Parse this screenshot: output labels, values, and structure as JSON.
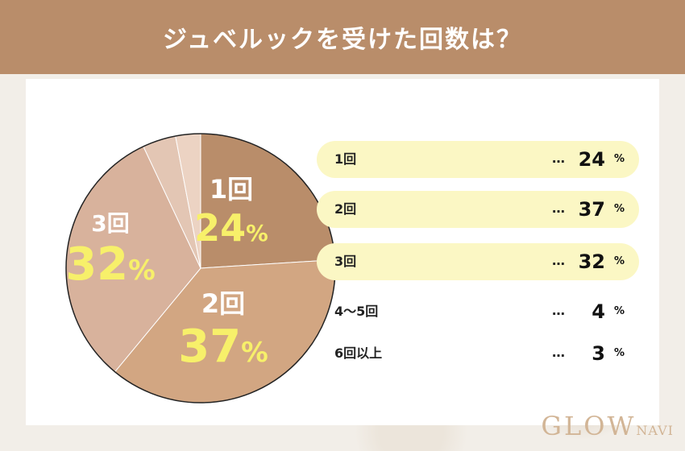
{
  "header": {
    "title": "ジュベルックを受けた回数は？"
  },
  "chart_data": {
    "type": "pie",
    "title": "ジュベルックを受けた回数は？",
    "unit": "%",
    "slices": [
      {
        "label": "1回",
        "value": 24,
        "color": "#b98d6a"
      },
      {
        "label": "2回",
        "value": 37,
        "color": "#d2a682"
      },
      {
        "label": "3回",
        "value": 32,
        "color": "#d8b29c"
      },
      {
        "label": "4〜5回",
        "value": 4,
        "color": "#e3c6b4"
      },
      {
        "label": "6回以上",
        "value": 3,
        "color": "#ecd3c3"
      }
    ],
    "legend_dots": "…",
    "legend_placement": "right"
  },
  "logo": {
    "main": "GLOW",
    "sub": "NAVI"
  }
}
